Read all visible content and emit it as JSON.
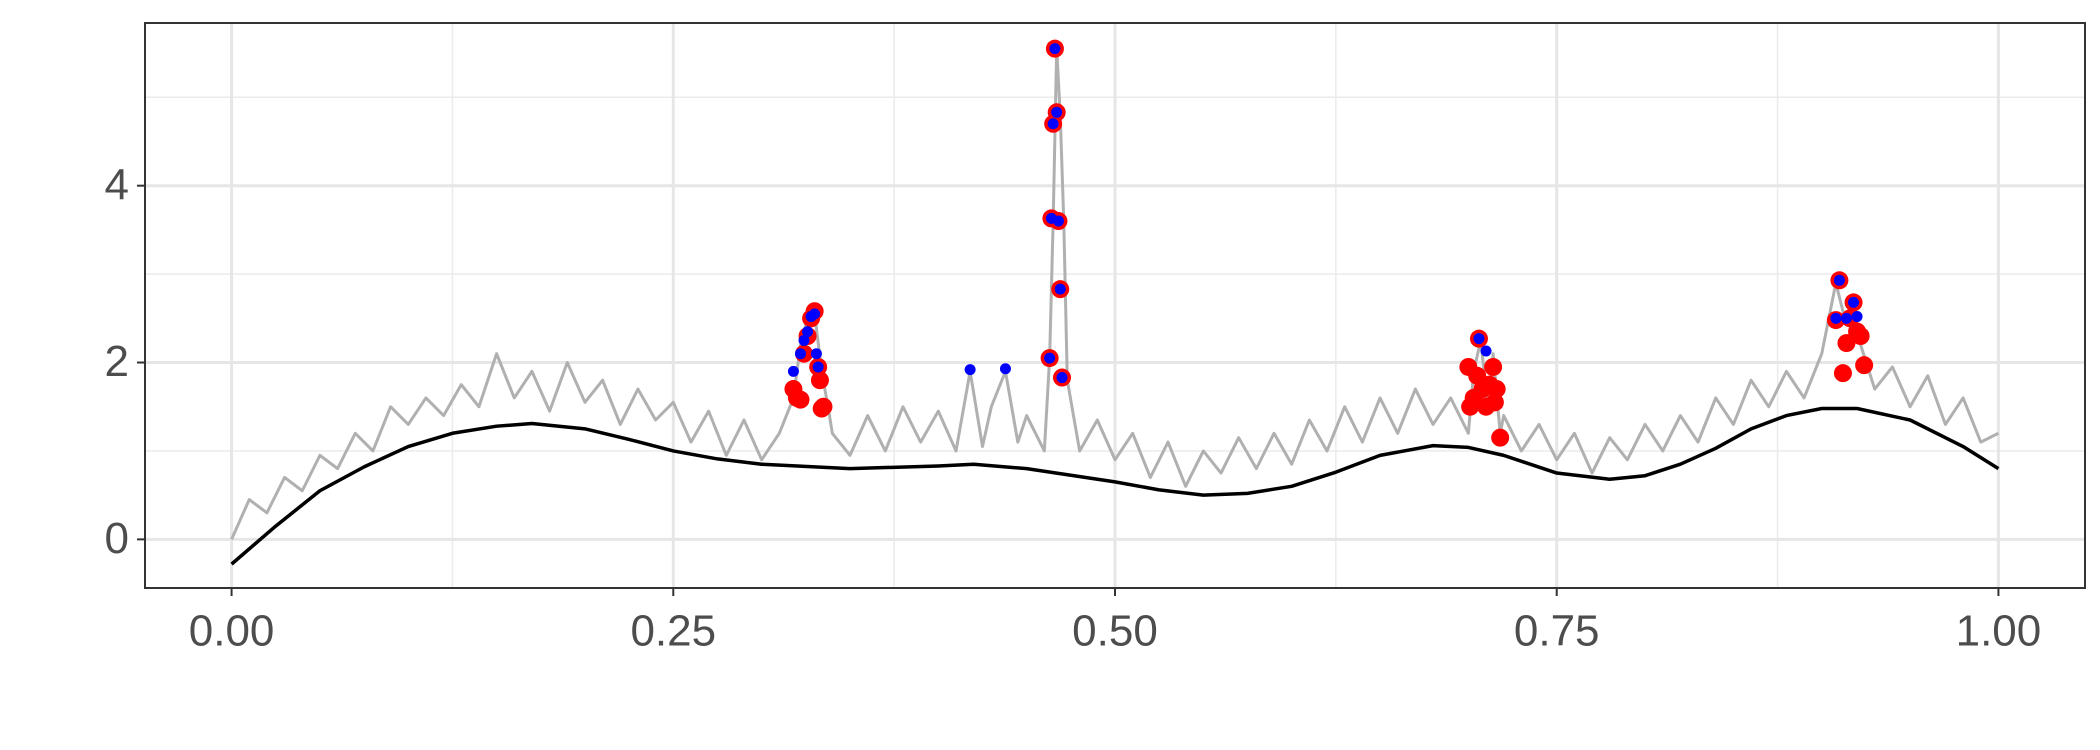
{
  "chart_data": {
    "type": "line",
    "xlim": [
      -0.049,
      1.049
    ],
    "ylim": [
      -0.55,
      5.84
    ],
    "xticks": [
      {
        "value": 0,
        "label": "0.00"
      },
      {
        "value": 0.25,
        "label": "0.25"
      },
      {
        "value": 0.5,
        "label": "0.50"
      },
      {
        "value": 0.75,
        "label": "0.75"
      },
      {
        "value": 1,
        "label": "1.00"
      }
    ],
    "yticks": [
      0,
      2,
      4
    ],
    "xminor": [
      0.125,
      0.375,
      0.625,
      0.875
    ],
    "yminor": [
      1,
      3,
      5
    ],
    "grid": true,
    "series": [
      {
        "type": "line",
        "color": "#b0b0b0",
        "x": [
          0,
          0.01,
          0.02,
          0.03,
          0.04,
          0.05,
          0.06,
          0.07,
          0.08,
          0.09,
          0.1,
          0.11,
          0.12,
          0.13,
          0.14,
          0.15,
          0.16,
          0.17,
          0.18,
          0.19,
          0.2,
          0.21,
          0.22,
          0.23,
          0.24,
          0.25,
          0.26,
          0.27,
          0.28,
          0.29,
          0.3,
          0.31,
          0.318,
          0.322,
          0.326,
          0.33,
          0.334,
          0.338,
          0.34,
          0.35,
          0.36,
          0.37,
          0.38,
          0.39,
          0.4,
          0.41,
          0.418,
          0.425,
          0.43,
          0.438,
          0.445,
          0.45,
          0.46,
          0.463,
          0.465,
          0.467,
          0.469,
          0.471,
          0.473,
          0.48,
          0.49,
          0.5,
          0.51,
          0.52,
          0.53,
          0.54,
          0.55,
          0.56,
          0.57,
          0.58,
          0.59,
          0.6,
          0.61,
          0.62,
          0.63,
          0.64,
          0.65,
          0.66,
          0.67,
          0.68,
          0.69,
          0.7,
          0.703,
          0.707,
          0.711,
          0.714,
          0.718,
          0.72,
          0.73,
          0.74,
          0.75,
          0.76,
          0.77,
          0.78,
          0.79,
          0.8,
          0.81,
          0.82,
          0.83,
          0.84,
          0.85,
          0.86,
          0.87,
          0.88,
          0.89,
          0.9,
          0.908,
          0.913,
          0.918,
          0.922,
          0.926,
          0.93,
          0.94,
          0.95,
          0.96,
          0.97,
          0.98,
          0.99,
          1.0
        ],
        "values": [
          0.0,
          0.45,
          0.3,
          0.7,
          0.55,
          0.95,
          0.8,
          1.2,
          1.0,
          1.5,
          1.3,
          1.6,
          1.4,
          1.75,
          1.5,
          2.1,
          1.6,
          1.9,
          1.45,
          2.0,
          1.55,
          1.8,
          1.3,
          1.7,
          1.35,
          1.55,
          1.1,
          1.45,
          0.95,
          1.35,
          0.9,
          1.2,
          1.6,
          2.2,
          2.5,
          2.55,
          1.9,
          1.45,
          1.2,
          0.95,
          1.4,
          1.0,
          1.5,
          1.1,
          1.45,
          1.0,
          1.9,
          1.05,
          1.5,
          1.9,
          1.1,
          1.4,
          1.0,
          2.05,
          3.6,
          5.55,
          4.8,
          3.6,
          1.8,
          1.0,
          1.35,
          0.9,
          1.2,
          0.7,
          1.1,
          0.6,
          1.0,
          0.75,
          1.15,
          0.8,
          1.2,
          0.85,
          1.35,
          1.0,
          1.5,
          1.1,
          1.6,
          1.2,
          1.7,
          1.3,
          1.6,
          1.2,
          1.9,
          2.25,
          1.5,
          2.1,
          1.2,
          1.4,
          1.0,
          1.3,
          0.9,
          1.2,
          0.75,
          1.15,
          0.9,
          1.3,
          1.0,
          1.4,
          1.1,
          1.6,
          1.3,
          1.8,
          1.5,
          1.9,
          1.6,
          2.1,
          2.9,
          2.5,
          2.7,
          2.2,
          1.95,
          1.7,
          1.95,
          1.5,
          1.85,
          1.3,
          1.6,
          1.1,
          1.2
        ]
      },
      {
        "type": "line",
        "color": "#000000",
        "x": [
          0,
          0.025,
          0.05,
          0.075,
          0.1,
          0.125,
          0.15,
          0.17,
          0.2,
          0.225,
          0.25,
          0.275,
          0.3,
          0.35,
          0.4,
          0.42,
          0.45,
          0.5,
          0.525,
          0.55,
          0.575,
          0.6,
          0.625,
          0.65,
          0.68,
          0.7,
          0.72,
          0.75,
          0.78,
          0.8,
          0.82,
          0.84,
          0.86,
          0.88,
          0.9,
          0.92,
          0.95,
          0.98,
          1.0
        ],
        "values": [
          -0.28,
          0.15,
          0.55,
          0.82,
          1.05,
          1.2,
          1.28,
          1.31,
          1.25,
          1.13,
          1.0,
          0.91,
          0.85,
          0.8,
          0.83,
          0.85,
          0.8,
          0.65,
          0.56,
          0.5,
          0.52,
          0.6,
          0.76,
          0.95,
          1.06,
          1.04,
          0.95,
          0.75,
          0.68,
          0.72,
          0.85,
          1.03,
          1.25,
          1.4,
          1.48,
          1.48,
          1.35,
          1.05,
          0.8
        ]
      },
      {
        "type": "scatter",
        "color": "#ff0000",
        "size": 9,
        "x": [
          0.318,
          0.32,
          0.322,
          0.324,
          0.326,
          0.328,
          0.33,
          0.332,
          0.333,
          0.335,
          0.334,
          0.463,
          0.464,
          0.465,
          0.466,
          0.467,
          0.468,
          0.469,
          0.47,
          0.7,
          0.701,
          0.703,
          0.705,
          0.706,
          0.708,
          0.71,
          0.712,
          0.714,
          0.715,
          0.716,
          0.718,
          0.908,
          0.91,
          0.912,
          0.914,
          0.916,
          0.918,
          0.92,
          0.922,
          0.924
        ],
        "values": [
          1.7,
          1.6,
          1.58,
          2.1,
          2.3,
          2.5,
          2.58,
          1.95,
          1.8,
          1.5,
          1.48,
          2.05,
          3.63,
          4.7,
          5.55,
          4.83,
          3.6,
          2.83,
          1.83,
          1.95,
          1.5,
          1.6,
          1.85,
          2.27,
          1.7,
          1.5,
          1.75,
          1.95,
          1.55,
          1.7,
          1.15,
          2.48,
          2.93,
          1.88,
          2.22,
          2.5,
          2.68,
          2.35,
          2.3,
          1.97
        ]
      },
      {
        "type": "scatter",
        "color": "#0000ff",
        "size": 5.5,
        "x": [
          0.318,
          0.322,
          0.324,
          0.326,
          0.328,
          0.33,
          0.331,
          0.332,
          0.418,
          0.438,
          0.463,
          0.464,
          0.465,
          0.466,
          0.467,
          0.468,
          0.469,
          0.47,
          0.706,
          0.71,
          0.908,
          0.91,
          0.914,
          0.918,
          0.92
        ],
        "values": [
          1.9,
          2.1,
          2.25,
          2.35,
          2.52,
          2.55,
          2.1,
          1.95,
          1.92,
          1.93,
          2.05,
          3.63,
          4.7,
          5.55,
          4.83,
          3.6,
          2.83,
          1.83,
          2.27,
          2.13,
          2.5,
          2.93,
          2.5,
          2.68,
          2.52
        ]
      }
    ]
  }
}
